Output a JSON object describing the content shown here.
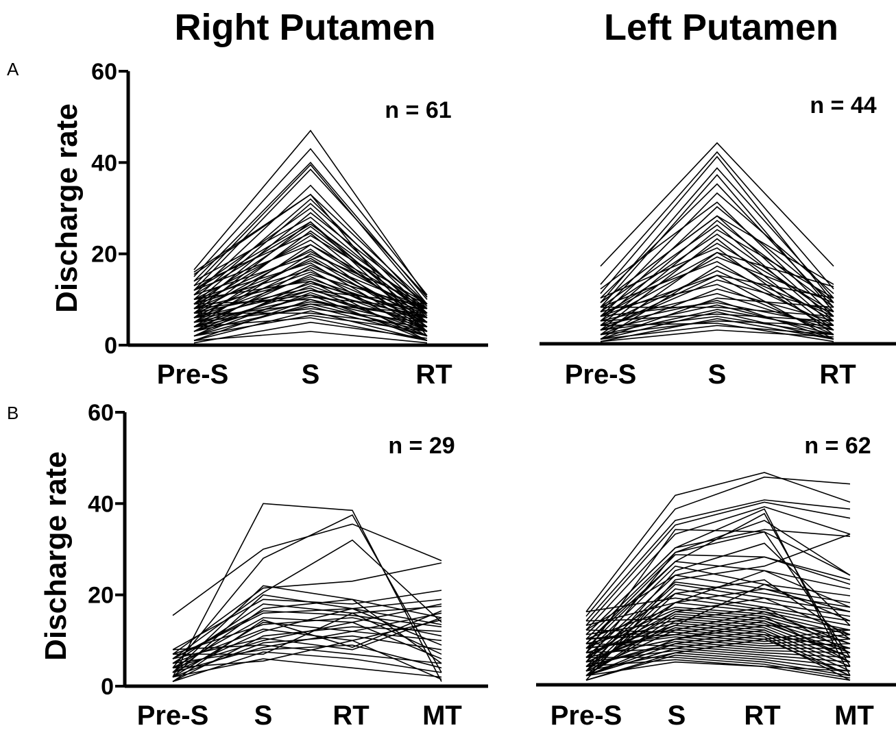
{
  "figure": {
    "columns": [
      "Right Putamen",
      "Left Putamen"
    ],
    "rows": [
      "A",
      "B"
    ]
  },
  "chart_data": [
    {
      "panel": "A-right",
      "type": "line",
      "title": "Right Putamen",
      "row_label": "A",
      "ylabel": "Discharge rate",
      "ylim": [
        0,
        60
      ],
      "yticks": [
        0,
        20,
        40,
        60
      ],
      "categories": [
        "Pre-S",
        "S",
        "RT"
      ],
      "annotation": "n = 61",
      "n": 61,
      "series_values": [
        [
          16.5,
          47,
          10.5
        ],
        [
          15,
          43,
          11
        ],
        [
          14,
          40,
          10
        ],
        [
          13,
          39.5,
          9
        ],
        [
          12,
          38.5,
          10.5
        ],
        [
          11,
          35,
          8
        ],
        [
          15.5,
          33,
          9
        ],
        [
          10,
          32,
          7
        ],
        [
          9,
          31,
          8.5
        ],
        [
          12,
          30,
          6
        ],
        [
          8,
          29,
          9
        ],
        [
          14,
          28,
          7
        ],
        [
          7,
          27,
          5
        ],
        [
          11,
          26.5,
          8
        ],
        [
          9,
          26,
          6.5
        ],
        [
          6,
          25,
          7
        ],
        [
          13,
          24.5,
          4
        ],
        [
          8,
          24,
          9
        ],
        [
          10,
          23,
          5
        ],
        [
          5,
          22,
          8
        ],
        [
          12,
          22,
          6
        ],
        [
          7,
          21,
          3
        ],
        [
          9,
          20.5,
          7
        ],
        [
          4,
          20,
          9
        ],
        [
          11,
          19.5,
          5
        ],
        [
          6,
          19,
          4
        ],
        [
          8,
          18.5,
          8
        ],
        [
          10,
          18,
          3
        ],
        [
          5,
          17.5,
          6
        ],
        [
          3,
          17,
          7
        ],
        [
          9,
          16.5,
          2
        ],
        [
          7,
          16,
          5
        ],
        [
          4,
          15.5,
          8
        ],
        [
          6,
          15,
          3
        ],
        [
          8,
          14.5,
          6
        ],
        [
          2,
          14,
          5
        ],
        [
          10,
          14,
          1
        ],
        [
          5,
          13.5,
          7
        ],
        [
          3,
          13,
          4
        ],
        [
          7,
          12.5,
          2
        ],
        [
          4,
          12,
          9
        ],
        [
          6,
          12,
          6
        ],
        [
          2,
          11.5,
          3
        ],
        [
          8,
          11,
          5
        ],
        [
          3,
          11,
          1
        ],
        [
          5,
          10.5,
          8
        ],
        [
          1,
          10,
          4
        ],
        [
          9,
          10,
          2
        ],
        [
          4,
          9.5,
          6
        ],
        [
          2,
          9,
          3
        ],
        [
          6,
          9,
          7
        ],
        [
          3,
          8.5,
          2
        ],
        [
          5,
          8,
          5
        ],
        [
          1,
          7.5,
          1
        ],
        [
          7,
          7,
          4
        ],
        [
          2,
          6.5,
          3
        ],
        [
          4,
          6,
          1
        ],
        [
          16,
          33,
          2
        ],
        [
          12,
          27,
          3
        ],
        [
          0.5,
          5,
          1.5
        ],
        [
          1,
          3,
          0.5
        ]
      ]
    },
    {
      "panel": "A-left",
      "type": "line",
      "title": "Left Putamen",
      "row_label": "A",
      "ylabel": "",
      "ylim": [
        0,
        60
      ],
      "categories": [
        "Pre-S",
        "S",
        "RT"
      ],
      "annotation": "n = 44",
      "n": 44,
      "series_values": [
        [
          17,
          44,
          17
        ],
        [
          13,
          42,
          12
        ],
        [
          11,
          41,
          9
        ],
        [
          9,
          38.5,
          10
        ],
        [
          8,
          37,
          7
        ],
        [
          10,
          35,
          8
        ],
        [
          7,
          33,
          11
        ],
        [
          12,
          31,
          6
        ],
        [
          6,
          30,
          9
        ],
        [
          9,
          28,
          5
        ],
        [
          5,
          27,
          8
        ],
        [
          8,
          26,
          4
        ],
        [
          4,
          25,
          10
        ],
        [
          7,
          24,
          6
        ],
        [
          3,
          23,
          3
        ],
        [
          6,
          22,
          7
        ],
        [
          10,
          21,
          2
        ],
        [
          2,
          20,
          5
        ],
        [
          5,
          19,
          9
        ],
        [
          8,
          18,
          3
        ],
        [
          1,
          17,
          6
        ],
        [
          4,
          16,
          4
        ],
        [
          6,
          15,
          1
        ],
        [
          3,
          14,
          7
        ],
        [
          7,
          13,
          2
        ],
        [
          2,
          12,
          5
        ],
        [
          5,
          11,
          3
        ],
        [
          1,
          10,
          8
        ],
        [
          4,
          9.5,
          1
        ],
        [
          6,
          9,
          4
        ],
        [
          3,
          8.5,
          2
        ],
        [
          8,
          8,
          6
        ],
        [
          2,
          7.5,
          3
        ],
        [
          1,
          7,
          1
        ],
        [
          5,
          6.5,
          5
        ],
        [
          3,
          6,
          2
        ],
        [
          0.5,
          5.5,
          1
        ],
        [
          2,
          5,
          4
        ],
        [
          4,
          4.5,
          0.5
        ],
        [
          1,
          4,
          2
        ],
        [
          9,
          28,
          13
        ],
        [
          6,
          20,
          12.5
        ],
        [
          3,
          15,
          10
        ],
        [
          0.5,
          3,
          1.5
        ]
      ]
    },
    {
      "panel": "B-right",
      "type": "line",
      "title": "",
      "row_label": "B",
      "ylabel": "Discharge rate",
      "ylim": [
        0,
        60
      ],
      "yticks": [
        0,
        20,
        40,
        60
      ],
      "categories": [
        "Pre-S",
        "S",
        "RT",
        "MT"
      ],
      "annotation": "n = 29",
      "n": 29,
      "series_values": [
        [
          15.5,
          30,
          35.5,
          27.5
        ],
        [
          2,
          40,
          38.5,
          1
        ],
        [
          4,
          28,
          37.5,
          3
        ],
        [
          7,
          21.5,
          23,
          27
        ],
        [
          6,
          20.5,
          32,
          14
        ],
        [
          8,
          19,
          18,
          21
        ],
        [
          5,
          18,
          16,
          17.5
        ],
        [
          3,
          17,
          19,
          15
        ],
        [
          6,
          16,
          17,
          13.5
        ],
        [
          4,
          15,
          14,
          18
        ],
        [
          2,
          14,
          12,
          16
        ],
        [
          7,
          13.5,
          15,
          11
        ],
        [
          5,
          12.5,
          10,
          14.5
        ],
        [
          3,
          12,
          17,
          9
        ],
        [
          1,
          11,
          13,
          12
        ],
        [
          6,
          10.5,
          8,
          15
        ],
        [
          4,
          10,
          14,
          6
        ],
        [
          2,
          9.5,
          11,
          8
        ],
        [
          8,
          9,
          7,
          5
        ],
        [
          3,
          8.5,
          12,
          10
        ],
        [
          5,
          8,
          9,
          4
        ],
        [
          1,
          7.5,
          6,
          3
        ],
        [
          7,
          7,
          16,
          7
        ],
        [
          2,
          6,
          4,
          2
        ],
        [
          4,
          5.5,
          10,
          1.5
        ],
        [
          3,
          22,
          19,
          5
        ],
        [
          6,
          16.5,
          15.5,
          13
        ],
        [
          2,
          20,
          17,
          19
        ],
        [
          1,
          14.5,
          8.5,
          16.5
        ]
      ]
    },
    {
      "panel": "B-left",
      "type": "line",
      "title": "",
      "row_label": "B",
      "ylabel": "",
      "ylim": [
        0,
        60
      ],
      "categories": [
        "Pre-S",
        "S",
        "RT",
        "MT"
      ],
      "annotation": "n = 62",
      "n": 62,
      "series_values": [
        [
          16,
          41.5,
          46.5,
          40
        ],
        [
          15,
          38.5,
          45.5,
          44
        ],
        [
          14,
          36,
          40.5,
          38.5
        ],
        [
          13,
          35,
          40,
          36.5
        ],
        [
          12,
          33,
          39,
          33
        ],
        [
          11,
          30,
          34,
          32.5
        ],
        [
          10,
          29,
          33.5,
          24
        ],
        [
          9,
          28.5,
          28,
          23
        ],
        [
          8,
          27,
          25,
          21
        ],
        [
          7,
          26,
          22,
          19.5
        ],
        [
          6,
          24,
          21,
          18
        ],
        [
          5,
          22.5,
          20,
          17
        ],
        [
          4,
          22,
          19,
          16
        ],
        [
          3,
          21,
          18,
          15
        ],
        [
          2,
          20,
          17,
          14
        ],
        [
          16,
          19,
          16.5,
          13
        ],
        [
          13,
          18,
          16,
          12
        ],
        [
          10,
          17,
          15.5,
          11
        ],
        [
          8,
          16.5,
          15,
          10
        ],
        [
          6,
          16,
          14.5,
          9
        ],
        [
          4,
          15.5,
          14,
          8
        ],
        [
          2,
          15,
          13.5,
          7
        ],
        [
          14,
          14.5,
          13,
          6
        ],
        [
          11,
          14,
          12.5,
          5
        ],
        [
          9,
          13.5,
          12,
          4
        ],
        [
          7,
          13,
          11.5,
          3
        ],
        [
          5,
          12.5,
          11,
          2
        ],
        [
          3,
          12,
          10.5,
          1
        ],
        [
          12,
          11.5,
          10,
          12
        ],
        [
          10,
          11,
          9.5,
          11
        ],
        [
          8,
          10.5,
          9,
          10
        ],
        [
          6,
          10,
          8.5,
          9
        ],
        [
          4,
          9.5,
          8,
          8
        ],
        [
          2,
          9,
          7.5,
          7
        ],
        [
          9,
          8.5,
          7,
          6
        ],
        [
          7,
          8,
          6.5,
          5
        ],
        [
          5,
          7.5,
          6,
          4
        ],
        [
          3,
          7,
          5.5,
          3
        ],
        [
          1,
          6.5,
          5,
          2
        ],
        [
          6,
          6,
          4.5,
          1.5
        ],
        [
          4,
          5.5,
          4,
          1
        ],
        [
          2,
          5,
          4,
          3
        ],
        [
          11,
          30,
          38.5,
          2
        ],
        [
          9,
          27,
          37.5,
          4
        ],
        [
          7,
          34,
          33.5,
          6
        ],
        [
          5,
          29,
          36,
          24
        ],
        [
          3,
          25,
          31,
          13
        ],
        [
          1,
          23,
          26,
          33
        ],
        [
          8,
          20,
          23,
          10
        ],
        [
          6,
          18,
          21,
          16
        ],
        [
          4,
          16,
          19,
          11
        ],
        [
          2,
          14,
          17,
          7
        ],
        [
          10,
          12,
          16,
          9
        ],
        [
          8,
          11,
          15,
          5
        ],
        [
          6,
          10,
          13,
          12
        ],
        [
          4,
          9,
          12,
          4
        ],
        [
          2,
          8,
          11,
          8
        ],
        [
          1,
          7,
          10,
          2
        ],
        [
          12,
          24,
          28,
          22
        ],
        [
          3,
          18,
          25,
          17
        ],
        [
          5,
          13,
          22,
          14
        ],
        [
          2,
          10,
          14,
          6
        ]
      ]
    }
  ]
}
